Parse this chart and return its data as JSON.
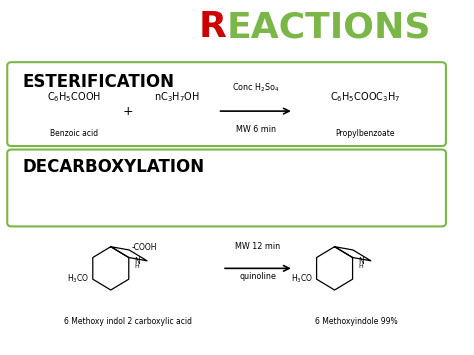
{
  "bg_color": "#ffffff",
  "title_R_color": "#cc0000",
  "title_rest_color": "#7ab648",
  "box_color": "#7ab648",
  "title_fontsize": 26,
  "section_fontsize": 12,
  "section1_label": "ESTERIFICATION",
  "section2_label": "DECARBOXYLATION",
  "r1_reactant1": "C$_6$H$_5$COOH",
  "r1_reactant1_sub": "Benzoic acid",
  "r1_plus": "+",
  "r1_reactant2": "nC$_3$H$_7$OH",
  "r1_arrow_above": "Conc H$_2$So$_4$",
  "r1_arrow_below": "MW 6 min",
  "r1_product": "C$_6$H$_5$COOC$_3$H$_7$",
  "r1_product_sub": "Propylbenzoate",
  "r2_arrow_above": "MW 12 min",
  "r2_arrow_below": "quinoline",
  "r2_reactant_label": "6 Methoxy indol 2 carboxylic acid",
  "r2_product_label": "6 Methoxyindole 99%",
  "figw": 4.74,
  "figh": 3.55,
  "dpi": 100
}
